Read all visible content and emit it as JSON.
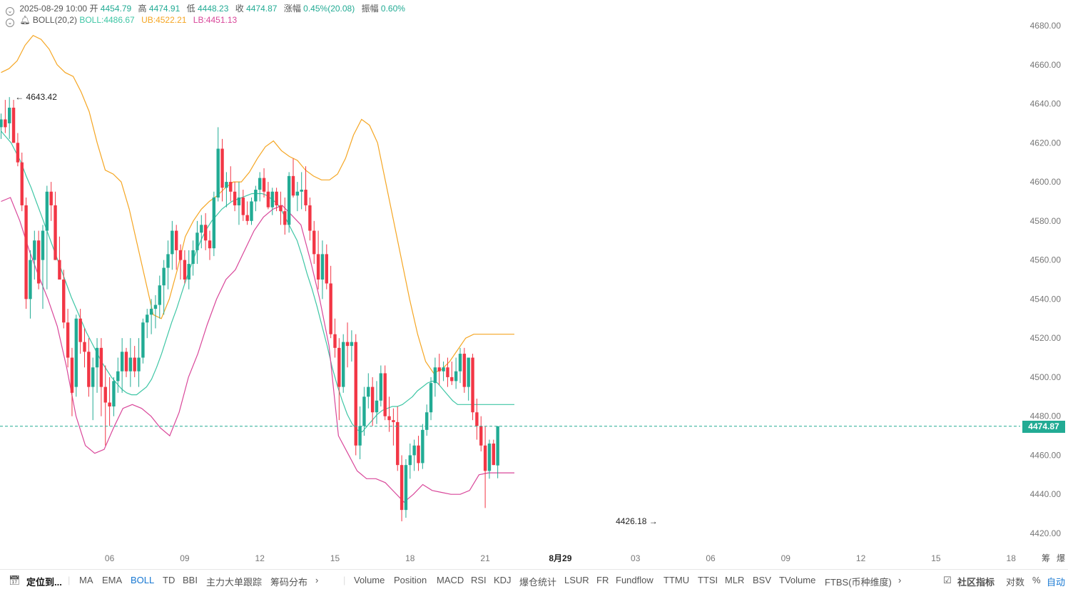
{
  "header": {
    "datetime": "2025-08-29 10:00",
    "open_label": "开",
    "open": "4454.79",
    "high_label": "高",
    "high": "4474.91",
    "low_label": "低",
    "low": "4448.23",
    "close_label": "收",
    "close": "4474.87",
    "change_label": "涨幅",
    "change": "0.45%(20.08)",
    "amplitude_label": "振幅",
    "amplitude": "0.60%",
    "boll_label": "BOLL(20,2)",
    "boll_mid": "BOLL:4486.67",
    "boll_ub": "UB:4522.21",
    "boll_lb": "LB:4451.13"
  },
  "colors": {
    "up": "#22ab94",
    "down": "#f23645",
    "mid": "#3ec6a5",
    "ub": "#f5a623",
    "lb": "#d9479a",
    "grid": "#eeeeee",
    "active": "#1677d2"
  },
  "price_tag": "4474.87",
  "chart_data": {
    "type": "candlestick",
    "title": "",
    "ylim": [
      4414,
      4690
    ],
    "y_ticks": [
      "4680.00",
      "4660.00",
      "4640.00",
      "4620.00",
      "4600.00",
      "4580.00",
      "4560.00",
      "4540.00",
      "4520.00",
      "4500.00",
      "4480.00",
      "4460.00",
      "4440.00",
      "4420.00"
    ],
    "y_tick_values": [
      4680,
      4660,
      4640,
      4620,
      4600,
      4580,
      4560,
      4540,
      4520,
      4500,
      4480,
      4460,
      4440,
      4420
    ],
    "x_ticks": [
      "06",
      "09",
      "12",
      "15",
      "18",
      "21",
      "8月29",
      "03",
      "06",
      "09",
      "12",
      "15",
      "18"
    ],
    "x_tick_index": [
      26,
      44,
      62,
      80,
      98,
      116,
      134,
      152,
      170,
      188,
      206,
      224,
      242
    ],
    "last_price": 4474.87,
    "max_marker": "← 4643.42",
    "max_marker_value": 4643.42,
    "max_marker_index": 2,
    "min_marker": "4426.18 →",
    "min_marker_value": 4426.18,
    "min_marker_index": 158,
    "candles": [
      [
        4628,
        4635,
        4622,
        4632
      ],
      [
        4632,
        4642,
        4625,
        4628
      ],
      [
        4630,
        4643.42,
        4622,
        4638
      ],
      [
        4638,
        4642,
        4620,
        4620
      ],
      [
        4620,
        4625,
        4608,
        4610
      ],
      [
        4610,
        4615,
        4585,
        4588
      ],
      [
        4588,
        4592,
        4535,
        4540
      ],
      [
        4540,
        4565,
        4530,
        4560
      ],
      [
        4560,
        4575,
        4550,
        4570
      ],
      [
        4570,
        4575,
        4545,
        4548
      ],
      [
        4560,
        4578,
        4535,
        4575
      ],
      [
        4575,
        4598,
        4545,
        4595
      ],
      [
        4595,
        4600,
        4580,
        4588
      ],
      [
        4588,
        4595,
        4560,
        4560
      ],
      [
        4560,
        4572,
        4550,
        4550
      ],
      [
        4550,
        4555,
        4525,
        4528
      ],
      [
        4528,
        4535,
        4505,
        4510
      ],
      [
        4510,
        4515,
        4480,
        4492
      ],
      [
        4495,
        4532,
        4490,
        4530
      ],
      [
        4530,
        4535,
        4512,
        4518
      ],
      [
        4518,
        4525,
        4505,
        4513
      ],
      [
        4513,
        4520,
        4490,
        4495
      ],
      [
        4495,
        4510,
        4478,
        4505
      ],
      [
        4505,
        4520,
        4492,
        4515
      ],
      [
        4515,
        4520,
        4480,
        4495
      ],
      [
        4495,
        4506,
        4465,
        4487
      ],
      [
        4487,
        4500,
        4475,
        4485
      ],
      [
        4485,
        4500,
        4480,
        4498
      ],
      [
        4498,
        4510,
        4492,
        4503
      ],
      [
        4503,
        4520,
        4492,
        4513
      ],
      [
        4513,
        4515,
        4500,
        4503
      ],
      [
        4503,
        4520,
        4495,
        4510
      ],
      [
        4510,
        4516,
        4500,
        4503
      ],
      [
        4503,
        4520,
        4495,
        4510
      ],
      [
        4510,
        4530,
        4507,
        4528
      ],
      [
        4528,
        4535,
        4520,
        4532
      ],
      [
        4532,
        4540,
        4522,
        4535
      ],
      [
        4535,
        4542,
        4525,
        4537
      ],
      [
        4537,
        4552,
        4530,
        4547
      ],
      [
        4547,
        4560,
        4532,
        4556
      ],
      [
        4556,
        4570,
        4545,
        4563
      ],
      [
        4563,
        4580,
        4555,
        4575
      ],
      [
        4575,
        4578,
        4555,
        4565
      ],
      [
        4565,
        4568,
        4550,
        4560
      ],
      [
        4560,
        4565,
        4548,
        4550
      ],
      [
        4550,
        4565,
        4545,
        4558
      ],
      [
        4558,
        4570,
        4552,
        4565
      ],
      [
        4565,
        4580,
        4558,
        4574
      ],
      [
        4574,
        4583,
        4566,
        4578
      ],
      [
        4578,
        4584,
        4565,
        4570
      ],
      [
        4570,
        4575,
        4560,
        4566
      ],
      [
        4566,
        4595,
        4562,
        4592
      ],
      [
        4592,
        4628,
        4590,
        4617
      ],
      [
        4617,
        4622,
        4590,
        4597
      ],
      [
        4597,
        4605,
        4587,
        4600
      ],
      [
        4600,
        4608,
        4590,
        4595
      ],
      [
        4595,
        4600,
        4585,
        4588
      ],
      [
        4588,
        4600,
        4578,
        4592
      ],
      [
        4592,
        4596,
        4580,
        4583
      ],
      [
        4583,
        4590,
        4578,
        4580
      ],
      [
        4580,
        4592,
        4578,
        4590
      ],
      [
        4590,
        4598,
        4585,
        4596
      ],
      [
        4596,
        4605,
        4590,
        4602
      ],
      [
        4602,
        4607,
        4592,
        4595
      ],
      [
        4595,
        4600,
        4586,
        4587
      ],
      [
        4587,
        4597,
        4583,
        4595
      ],
      [
        4595,
        4597,
        4585,
        4588
      ],
      [
        4588,
        4595,
        4578,
        4585
      ],
      [
        4585,
        4592,
        4573,
        4578
      ],
      [
        4578,
        4605,
        4574,
        4603
      ],
      [
        4603,
        4612,
        4592,
        4593
      ],
      [
        4593,
        4600,
        4585,
        4595
      ],
      [
        4595,
        4605,
        4586,
        4596
      ],
      [
        4596,
        4608,
        4585,
        4588
      ],
      [
        4588,
        4592,
        4570,
        4575
      ],
      [
        4575,
        4580,
        4558,
        4563
      ],
      [
        4563,
        4575,
        4545,
        4550
      ],
      [
        4550,
        4570,
        4540,
        4563
      ],
      [
        4563,
        4568,
        4545,
        4548
      ],
      [
        4548,
        4557,
        4520,
        4522
      ],
      [
        4522,
        4530,
        4510,
        4515
      ],
      [
        4515,
        4520,
        4478,
        4495
      ],
      [
        4495,
        4522,
        4492,
        4518
      ],
      [
        4518,
        4528,
        4505,
        4516
      ],
      [
        4516,
        4524,
        4508,
        4518
      ],
      [
        4518,
        4522,
        4460,
        4465
      ],
      [
        4465,
        4485,
        4458,
        4475
      ],
      [
        4475,
        4495,
        4470,
        4490
      ],
      [
        4490,
        4502,
        4484,
        4495
      ],
      [
        4495,
        4500,
        4475,
        4482
      ],
      [
        4482,
        4498,
        4476,
        4488
      ],
      [
        4488,
        4506,
        4485,
        4502
      ],
      [
        4502,
        4506,
        4478,
        4480
      ],
      [
        4480,
        4490,
        4472,
        4478
      ],
      [
        4478,
        4484,
        4465,
        4477
      ],
      [
        4477,
        4485,
        4452,
        4455
      ],
      [
        4455,
        4460,
        4426.18,
        4432
      ],
      [
        4432,
        4458,
        4428,
        4455
      ],
      [
        4455,
        4466,
        4448,
        4460
      ],
      [
        4460,
        4468,
        4452,
        4465
      ],
      [
        4465,
        4470,
        4452,
        4456
      ],
      [
        4456,
        4476,
        4453,
        4473
      ],
      [
        4473,
        4486,
        4470,
        4482
      ],
      [
        4482,
        4500,
        4478,
        4497
      ],
      [
        4497,
        4510,
        4490,
        4505
      ],
      [
        4505,
        4512,
        4496,
        4503
      ],
      [
        4503,
        4508,
        4498,
        4505
      ],
      [
        4505,
        4510,
        4495,
        4500
      ],
      [
        4500,
        4508,
        4496,
        4498
      ],
      [
        4498,
        4510,
        4494,
        4503
      ],
      [
        4503,
        4515,
        4497,
        4512
      ],
      [
        4512,
        4515,
        4492,
        4495
      ],
      [
        4495,
        4510,
        4488,
        4510
      ],
      [
        4510,
        4512,
        4478,
        4482
      ],
      [
        4482,
        4489,
        4468,
        4475
      ],
      [
        4475,
        4480,
        4462,
        4465
      ],
      [
        4465,
        4475,
        4433,
        4452
      ],
      [
        4452,
        4468,
        4448,
        4466
      ],
      [
        4466,
        4468,
        4455,
        4455
      ],
      [
        4454.79,
        4474.91,
        4448.23,
        4474.87
      ]
    ],
    "boll_mid": [
      4626,
      4623,
      4620,
      4615,
      4610,
      4603,
      4597,
      4590,
      4583,
      4576,
      4569,
      4562,
      4555,
      4548,
      4541,
      4535,
      4529,
      4523,
      4518,
      4513,
      4508,
      4504,
      4500,
      4497,
      4494,
      4492,
      4491,
      4491,
      4493,
      4495,
      4499,
      4505,
      4512,
      4520,
      4528,
      4535,
      4543,
      4551,
      4558,
      4565,
      4571,
      4576,
      4580,
      4583,
      4586,
      4588,
      4590,
      4591,
      4592,
      4593,
      4594,
      4594,
      4594,
      4593,
      4591,
      4589,
      4585,
      4580,
      4575,
      4570,
      4562,
      4553,
      4545,
      4536,
      4526,
      4516,
      4505,
      4496,
      4488,
      4481,
      4476,
      4473,
      4472,
      4475,
      4478,
      4481,
      4483,
      4484,
      4485,
      4485,
      4486,
      4488,
      4490,
      4493,
      4495,
      4497,
      4498,
      4497,
      4494,
      4491,
      4488,
      4486,
      4486,
      4486,
      4486,
      4486,
      4486,
      4486,
      4486,
      4486
    ],
    "boll_ub": [
      4656,
      4658,
      4662,
      4670,
      4675,
      4673,
      4668,
      4660,
      4656,
      4654,
      4646,
      4636,
      4620,
      4606,
      4604,
      4600,
      4586,
      4568,
      4550,
      4532,
      4530,
      4540,
      4555,
      4572,
      4580,
      4586,
      4590,
      4593,
      4597,
      4600,
      4600,
      4605,
      4612,
      4618,
      4621,
      4616,
      4613,
      4611,
      4606,
      4603,
      4601,
      4601,
      4604,
      4612,
      4624,
      4632,
      4629,
      4620,
      4600,
      4580,
      4560,
      4540,
      4522,
      4508,
      4502,
      4504,
      4508,
      4514,
      4520,
      4522,
      4522,
      4522,
      4522
    ],
    "boll_lb": [
      4590,
      4592,
      4580,
      4565,
      4552,
      4540,
      4526,
      4505,
      4480,
      4465,
      4461,
      4463,
      4474,
      4484,
      4486,
      4484,
      4480,
      4474,
      4470,
      4482,
      4500,
      4512,
      4527,
      4540,
      4550,
      4555,
      4565,
      4575,
      4582,
      4586,
      4588,
      4583,
      4578,
      4560,
      4540,
      4516,
      4470,
      4461,
      4452,
      4448,
      4448,
      4446,
      4441,
      4436,
      4440,
      4445,
      4442,
      4441,
      4440,
      4440,
      4442,
      4450,
      4451,
      4451
    ]
  },
  "toolbar": {
    "locate": "定位到...",
    "items": [
      "MA",
      "EMA",
      "BOLL",
      "TD",
      "BBI",
      "主力大单跟踪",
      "筹码分布"
    ],
    "chevron1": "›",
    "items2": [
      "Volume",
      "Position",
      "MACD",
      "RSI",
      "KDJ",
      "爆仓统计",
      "LSUR",
      "FR",
      "Fundflow",
      "TTMU",
      "TTSI",
      "MLR",
      "BSV",
      "TVolume",
      "FTBS(币种维度)"
    ],
    "chevron2": "›",
    "community": "社区指标",
    "log": "对数",
    "percent": "%",
    "auto": "自动",
    "right_top1": "筹",
    "right_top2": "爆"
  }
}
